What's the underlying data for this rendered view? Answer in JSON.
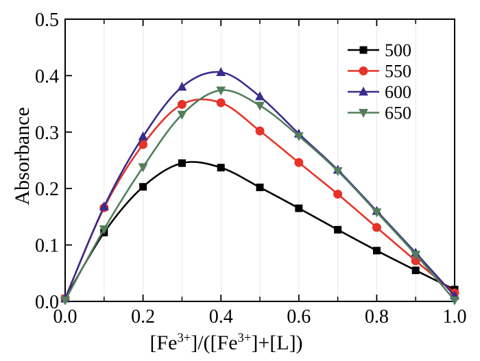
{
  "figure": {
    "background": "#ffffff",
    "text_color": "#000000",
    "frame_color": "#000000",
    "gridline_color": "#e7e7e7"
  },
  "chart_data": {
    "type": "line",
    "title": "",
    "xlabel_plain": "[Fe3+]/([Fe3+]+[L])",
    "xlabel_segments": [
      {
        "text": "[Fe"
      },
      {
        "text": "3+",
        "sup": true
      },
      {
        "text": "]/([Fe"
      },
      {
        "text": "3+",
        "sup": true
      },
      {
        "text": "]+[L])"
      }
    ],
    "ylabel": "Absorbance",
    "xlim": [
      0.0,
      1.0
    ],
    "ylim": [
      0.0,
      0.5
    ],
    "x_major_ticks": [
      0.0,
      0.2,
      0.4,
      0.6,
      0.8,
      1.0
    ],
    "x_minor_ticks": [
      0.1,
      0.3,
      0.5,
      0.7,
      0.9
    ],
    "top_ticks": [
      0.1,
      0.2,
      0.3,
      0.4,
      0.5,
      0.6,
      0.7,
      0.8,
      0.9
    ],
    "y_ticks": [
      0.0,
      0.1,
      0.2,
      0.3,
      0.4,
      0.5
    ],
    "grid_vertical_at": [
      0.1,
      0.2,
      0.3,
      0.4,
      0.5,
      0.6,
      0.7,
      0.8,
      0.9
    ],
    "legend": {
      "position": "top-right",
      "entries": [
        "500",
        "550",
        "600",
        "650"
      ]
    },
    "x": [
      0.0,
      0.1,
      0.2,
      0.3,
      0.4,
      0.5,
      0.6,
      0.7,
      0.8,
      0.9,
      1.0
    ],
    "series": [
      {
        "name": "500",
        "color": "#000000",
        "marker": "square",
        "values": [
          0.005,
          0.122,
          0.203,
          0.245,
          0.237,
          0.202,
          0.165,
          0.127,
          0.09,
          0.055,
          0.021
        ]
      },
      {
        "name": "550",
        "color": "#e63228",
        "marker": "circle",
        "values": [
          0.005,
          0.166,
          0.278,
          0.349,
          0.352,
          0.302,
          0.246,
          0.19,
          0.131,
          0.072,
          0.015
        ]
      },
      {
        "name": "600",
        "color": "#3a2b8c",
        "marker": "triangle-up",
        "values": [
          0.005,
          0.168,
          0.292,
          0.38,
          0.406,
          0.363,
          0.297,
          0.233,
          0.16,
          0.086,
          0.01
        ]
      },
      {
        "name": "650",
        "color": "#527e5c",
        "marker": "triangle-down",
        "values": [
          0.002,
          0.128,
          0.238,
          0.331,
          0.374,
          0.347,
          0.293,
          0.231,
          0.158,
          0.083,
          0.002
        ]
      }
    ]
  }
}
